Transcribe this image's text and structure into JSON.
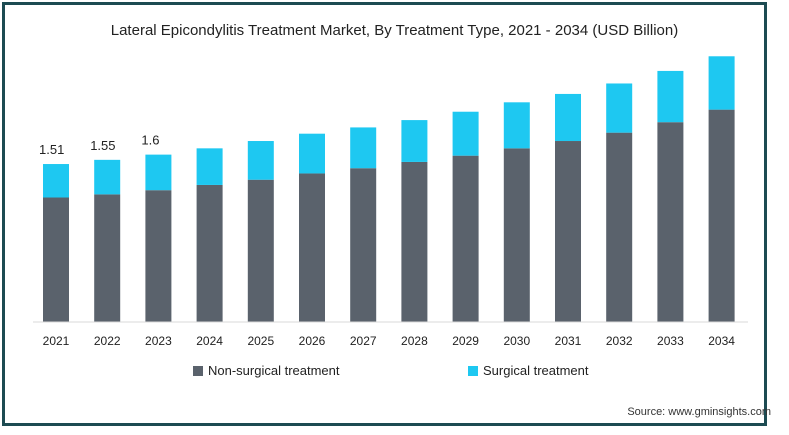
{
  "colors": {
    "frame": "#1d4b52",
    "non_surgical": "#5a626c",
    "surgical": "#1ec8f1"
  },
  "source": "Source: www.gminsights.com",
  "chart_data": {
    "type": "bar",
    "stacked": true,
    "title": "Lateral Epicondylitis Treatment Market, By Treatment Type, 2021 - 2034 (USD Billion)",
    "xlabel": "",
    "ylabel": "",
    "categories": [
      "2021",
      "2022",
      "2023",
      "2024",
      "2025",
      "2026",
      "2027",
      "2028",
      "2029",
      "2030",
      "2031",
      "2032",
      "2033",
      "2034"
    ],
    "series": [
      {
        "name": "Non-surgical treatment",
        "values": [
          1.19,
          1.22,
          1.26,
          1.31,
          1.36,
          1.42,
          1.47,
          1.53,
          1.59,
          1.66,
          1.73,
          1.81,
          1.91,
          2.03
        ]
      },
      {
        "name": "Surgical treatment",
        "values": [
          0.32,
          0.33,
          0.34,
          0.35,
          0.37,
          0.38,
          0.39,
          0.4,
          0.42,
          0.44,
          0.45,
          0.47,
          0.49,
          0.51
        ]
      }
    ],
    "data_labels": [
      "1.51",
      "1.55",
      "1.6"
    ],
    "ylim": [
      0,
      2.6
    ],
    "grid": false,
    "legend": "bottom"
  }
}
